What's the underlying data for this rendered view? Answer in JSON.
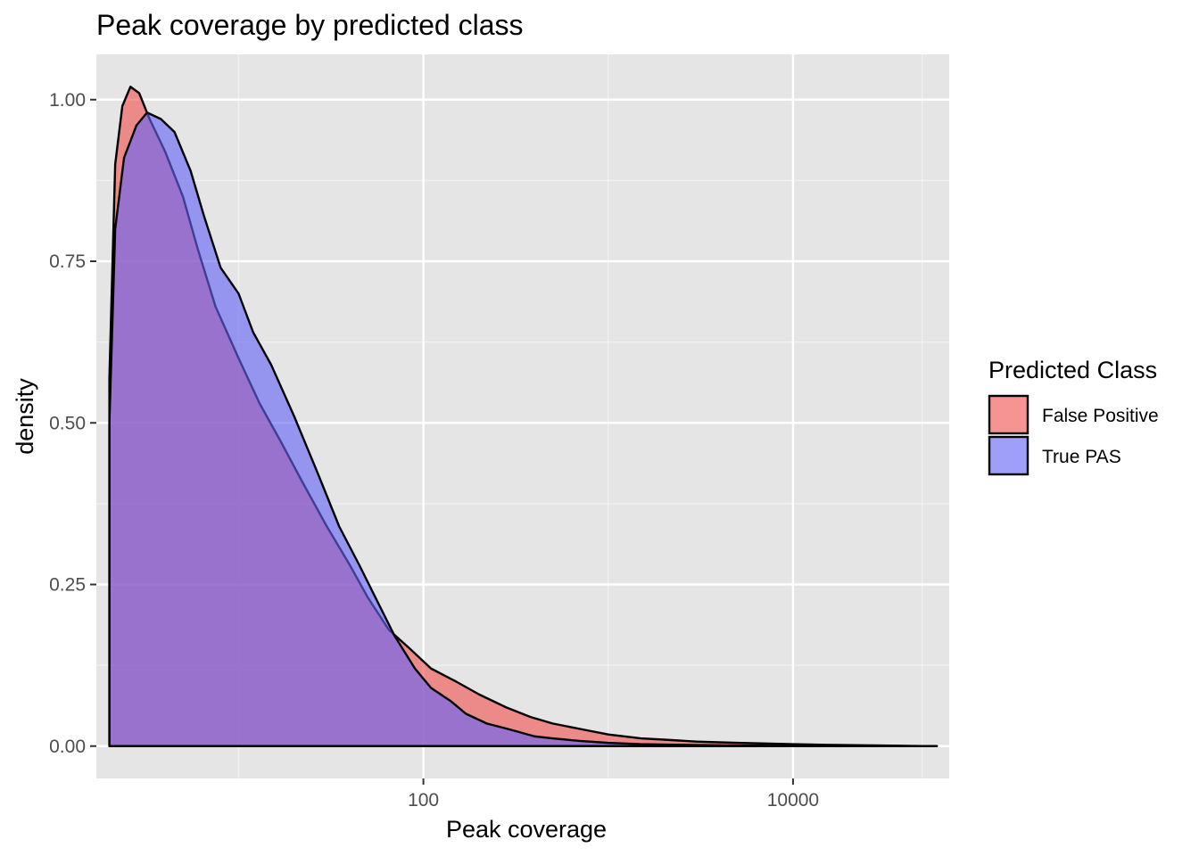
{
  "chart_data": {
    "type": "area",
    "title": "Peak coverage by predicted class",
    "xlabel": "Peak coverage",
    "ylabel": "density",
    "x_scale": "log10",
    "xlim": [
      1.7,
      70000
    ],
    "ylim": [
      -0.05,
      1.07
    ],
    "x_ticks": [
      {
        "value": 100,
        "label": "100"
      },
      {
        "value": 10000,
        "label": "10000"
      }
    ],
    "x_minor_ticks": [
      10,
      1000,
      50000
    ],
    "y_ticks": [
      {
        "value": 0,
        "label": "0.00"
      },
      {
        "value": 0.25,
        "label": "0.25"
      },
      {
        "value": 0.5,
        "label": "0.50"
      },
      {
        "value": 0.75,
        "label": "0.75"
      },
      {
        "value": 1.0,
        "label": "1.00"
      }
    ],
    "y_minor_ticks": [
      0.125,
      0.375,
      0.625,
      0.875
    ],
    "grid": true,
    "panel_background": "#e5e5e5",
    "legend": {
      "title": "Predicted Class",
      "position": "right"
    },
    "series": [
      {
        "name": "False Positive",
        "color": "#f8766d",
        "fill": "rgba(240,80,80,0.62)",
        "points": [
          [
            2,
            0.0
          ],
          [
            2,
            0.57
          ],
          [
            2.15,
            0.9
          ],
          [
            2.35,
            0.99
          ],
          [
            2.6,
            1.02
          ],
          [
            2.9,
            1.01
          ],
          [
            3.3,
            0.97
          ],
          [
            4,
            0.92
          ],
          [
            5,
            0.85
          ],
          [
            6,
            0.77
          ],
          [
            7.5,
            0.68
          ],
          [
            10,
            0.6
          ],
          [
            13,
            0.53
          ],
          [
            17,
            0.47
          ],
          [
            22,
            0.41
          ],
          [
            30,
            0.34
          ],
          [
            40,
            0.28
          ],
          [
            50,
            0.23
          ],
          [
            65,
            0.18
          ],
          [
            85,
            0.15
          ],
          [
            110,
            0.12
          ],
          [
            150,
            0.1
          ],
          [
            200,
            0.08
          ],
          [
            280,
            0.06
          ],
          [
            380,
            0.045
          ],
          [
            500,
            0.035
          ],
          [
            750,
            0.025
          ],
          [
            1000,
            0.018
          ],
          [
            1500,
            0.012
          ],
          [
            2000,
            0.01
          ],
          [
            3000,
            0.007
          ],
          [
            5000,
            0.005
          ],
          [
            10000,
            0.003
          ],
          [
            15000,
            0.002
          ],
          [
            30000,
            0.001
          ],
          [
            50000,
            0.0
          ],
          [
            60000,
            0.0
          ]
        ]
      },
      {
        "name": "True PAS",
        "color": "#619cff",
        "fill": "rgba(100,100,245,0.62)",
        "points": [
          [
            2,
            0.0
          ],
          [
            2,
            0.5
          ],
          [
            2.15,
            0.8
          ],
          [
            2.4,
            0.91
          ],
          [
            2.8,
            0.96
          ],
          [
            3.2,
            0.98
          ],
          [
            3.8,
            0.97
          ],
          [
            4.5,
            0.95
          ],
          [
            5.5,
            0.89
          ],
          [
            6.5,
            0.82
          ],
          [
            8,
            0.74
          ],
          [
            10,
            0.7
          ],
          [
            12,
            0.64
          ],
          [
            15,
            0.59
          ],
          [
            20,
            0.51
          ],
          [
            27,
            0.42
          ],
          [
            35,
            0.34
          ],
          [
            45,
            0.28
          ],
          [
            55,
            0.23
          ],
          [
            70,
            0.17
          ],
          [
            90,
            0.12
          ],
          [
            110,
            0.09
          ],
          [
            140,
            0.07
          ],
          [
            170,
            0.05
          ],
          [
            220,
            0.035
          ],
          [
            300,
            0.025
          ],
          [
            400,
            0.015
          ],
          [
            500,
            0.012
          ],
          [
            700,
            0.008
          ],
          [
            1000,
            0.005
          ],
          [
            1500,
            0.003
          ],
          [
            2500,
            0.002
          ],
          [
            5000,
            0.001
          ],
          [
            10000,
            0.0005
          ],
          [
            60000,
            0.0
          ]
        ]
      }
    ]
  }
}
